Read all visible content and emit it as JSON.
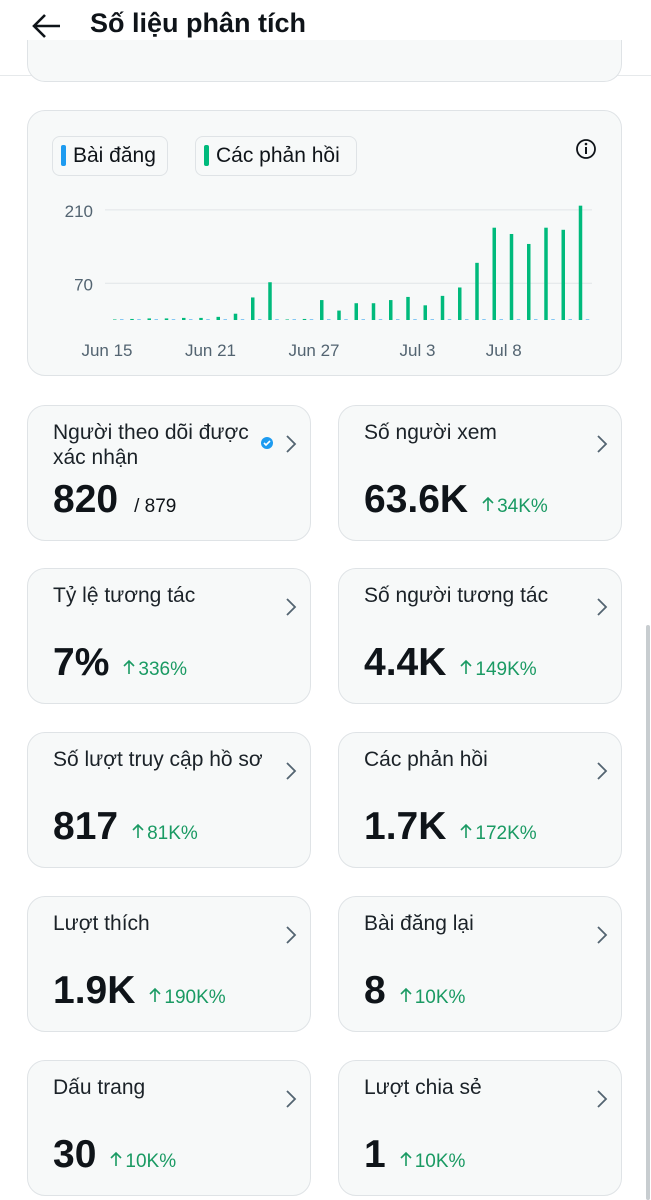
{
  "header": {
    "title": "Số liệu phân tích"
  },
  "chart_data": {
    "type": "bar",
    "categories": [
      "Jun 15",
      null,
      null,
      null,
      null,
      null,
      "Jun 21",
      null,
      null,
      null,
      null,
      null,
      "Jun 27",
      null,
      null,
      null,
      null,
      null,
      "Jul 3",
      null,
      null,
      null,
      null,
      "Jul 8",
      null,
      null,
      null,
      null
    ],
    "series": [
      {
        "name": "Bài đăng",
        "color": "#1d9bf0",
        "values": [
          1,
          1,
          1,
          1,
          1,
          1,
          1,
          1,
          1,
          1,
          1,
          1,
          1,
          1,
          1,
          1,
          1,
          1,
          1,
          1,
          1,
          1,
          1,
          1,
          1,
          1,
          1,
          1
        ]
      },
      {
        "name": "Các phản hồi",
        "color": "#00ba7c",
        "values": [
          1,
          2,
          3,
          3,
          4,
          4,
          6,
          12,
          43,
          72,
          1,
          2,
          38,
          18,
          32,
          32,
          38,
          44,
          28,
          46,
          62,
          109,
          176,
          164,
          145,
          176,
          172,
          218
        ]
      }
    ],
    "ylim": [
      0,
      225
    ],
    "yticks": [
      70,
      210
    ],
    "grid": true
  },
  "metrics": [
    {
      "label": "Người theo dõi được xác nhận",
      "value": "820",
      "total": "/ 879"
    },
    {
      "label": "Số người xem",
      "value": "63.6K",
      "change": "34K%"
    },
    {
      "label": "Tỷ lệ tương tác",
      "value": "7%",
      "change": "336%"
    },
    {
      "label": "Số người tương tác",
      "value": "4.4K",
      "change": "149K%"
    },
    {
      "label": "Số lượt truy cập hồ sơ",
      "value": "817",
      "change": "81K%"
    },
    {
      "label": "Các phản hồi",
      "value": "1.7K",
      "change": "172K%"
    },
    {
      "label": "Lượt thích",
      "value": "1.9K",
      "change": "190K%"
    },
    {
      "label": "Bài đăng lại",
      "value": "8",
      "change": "10K%"
    },
    {
      "label": "Dấu trang",
      "value": "30",
      "change": "10K%"
    },
    {
      "label": "Lượt chia sẻ",
      "value": "1",
      "change": "10K%"
    }
  ]
}
